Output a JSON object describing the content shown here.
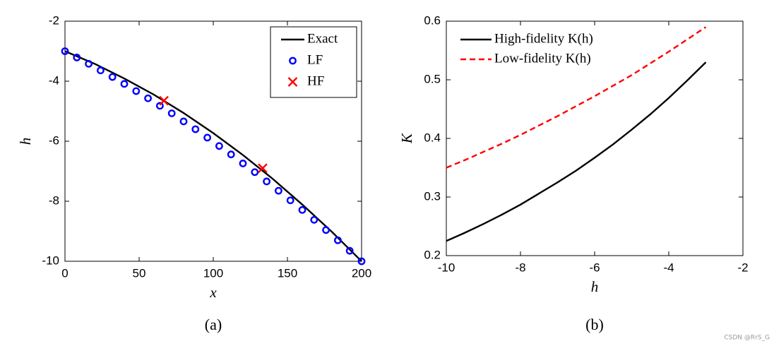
{
  "chart_data": [
    {
      "type": "line",
      "caption": "(a)",
      "xlabel": "x",
      "ylabel": "h",
      "xlim": [
        0,
        200
      ],
      "xticks": [
        0,
        50,
        100,
        150,
        200
      ],
      "ylim": [
        -10,
        -2
      ],
      "yticks": [
        -2,
        -4,
        -6,
        -8,
        -10
      ],
      "legend": "upper right",
      "legend_frame": true,
      "series": [
        {
          "name": "Exact",
          "color": "#000000",
          "style": "solid",
          "marker": "none",
          "x": [
            0,
            20,
            40,
            60,
            80,
            100,
            120,
            140,
            160,
            180,
            200
          ],
          "values": [
            -3,
            -3.42,
            -3.91,
            -4.45,
            -5.06,
            -5.73,
            -6.46,
            -7.25,
            -8.11,
            -9.02,
            -10
          ]
        },
        {
          "name": "LF",
          "color": "#0000ff",
          "style": "none",
          "marker": "circle",
          "x": [
            0,
            8,
            16,
            24,
            32,
            40,
            48,
            56,
            64,
            72,
            80,
            88,
            96,
            104,
            112,
            120,
            128,
            136,
            144,
            152,
            160,
            168,
            176,
            184,
            192,
            200
          ],
          "values": [
            -3,
            -3.21,
            -3.42,
            -3.64,
            -3.86,
            -4.09,
            -4.33,
            -4.57,
            -4.82,
            -5.07,
            -5.34,
            -5.6,
            -5.88,
            -6.16,
            -6.44,
            -6.74,
            -7.03,
            -7.34,
            -7.65,
            -7.97,
            -8.29,
            -8.62,
            -8.96,
            -9.3,
            -9.65,
            -10
          ]
        },
        {
          "name": "HF",
          "color": "#ff0000",
          "style": "none",
          "marker": "x",
          "x": [
            66.7,
            133.3
          ],
          "values": [
            -4.65,
            -6.9
          ]
        }
      ]
    },
    {
      "type": "line",
      "caption": "(b)",
      "xlabel": "h",
      "ylabel": "K",
      "xlim": [
        -10,
        -2
      ],
      "xticks": [
        -10,
        -8,
        -6,
        -4,
        -2
      ],
      "ylim": [
        0.2,
        0.6
      ],
      "yticks": [
        0.2,
        0.3,
        0.4,
        0.5,
        0.6
      ],
      "legend": "upper left",
      "legend_frame": false,
      "series": [
        {
          "name": "High-fidelity K(h)",
          "color": "#000000",
          "style": "solid",
          "marker": "none",
          "x": [
            -10,
            -9.5,
            -9,
            -8.5,
            -8,
            -7.5,
            -7,
            -6.5,
            -6,
            -5.5,
            -5,
            -4.5,
            -4,
            -3.5,
            -3
          ],
          "values": [
            0.225,
            0.239,
            0.254,
            0.27,
            0.287,
            0.306,
            0.325,
            0.345,
            0.367,
            0.39,
            0.415,
            0.441,
            0.469,
            0.499,
            0.53
          ]
        },
        {
          "name": "Low-fidelity K(h)",
          "color": "#ff0000",
          "style": "dashed",
          "marker": "none",
          "x": [
            -10,
            -9.5,
            -9,
            -8.5,
            -8,
            -7.5,
            -7,
            -6.5,
            -6,
            -5.5,
            -5,
            -4.5,
            -4,
            -3.5,
            -3
          ],
          "values": [
            0.35,
            0.363,
            0.377,
            0.391,
            0.406,
            0.422,
            0.438,
            0.455,
            0.472,
            0.49,
            0.508,
            0.528,
            0.548,
            0.569,
            0.59
          ]
        }
      ]
    }
  ],
  "watermark": "CSDN @RrS_G"
}
